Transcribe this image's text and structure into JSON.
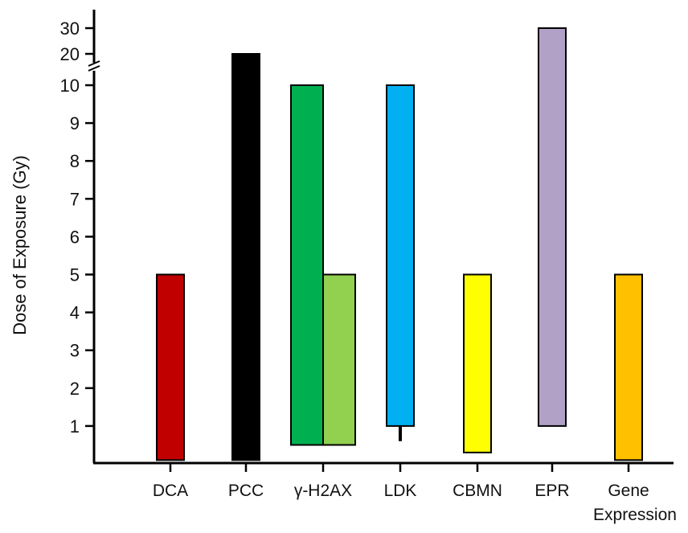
{
  "chart_data": {
    "type": "bar",
    "subtype": "floating-range",
    "ylabel": "Dose of Exposure (Gy)",
    "xlabel": "",
    "y_ticks_lower": [
      1,
      2,
      3,
      4,
      5,
      6,
      7,
      8,
      9,
      10
    ],
    "y_ticks_upper": [
      20,
      30
    ],
    "axis_break": true,
    "ylim": [
      0,
      30
    ],
    "categories": [
      {
        "label": "DCA",
        "label_lines": [
          "DCA"
        ]
      },
      {
        "label": "PCC",
        "label_lines": [
          "PCC"
        ]
      },
      {
        "label": "γ-H2AX",
        "label_lines": [
          "γ-H2AX"
        ]
      },
      {
        "label": "LDK",
        "label_lines": [
          "LDK"
        ]
      },
      {
        "label": "CBMN",
        "label_lines": [
          "CBMN"
        ]
      },
      {
        "label": "EPR",
        "label_lines": [
          "EPR"
        ]
      },
      {
        "label": "Gene Expression",
        "label_lines": [
          "Gene",
          "Expression"
        ]
      }
    ],
    "bars": [
      {
        "category": "DCA",
        "low": 0.1,
        "high": 5,
        "color": "#c00000"
      },
      {
        "category": "PCC",
        "low": 0.1,
        "high": 20,
        "color": "#000000"
      },
      {
        "category": "γ-H2AX",
        "low": 0.5,
        "high": 10,
        "color": "#00b050"
      },
      {
        "category": "γ-H2AX",
        "low": 0.5,
        "high": 5,
        "color": "#92d050"
      },
      {
        "category": "LDK",
        "low": 1,
        "high": 10,
        "color": "#00b0f0",
        "whisker_low": 0.6
      },
      {
        "category": "CBMN",
        "low": 0.3,
        "high": 5,
        "color": "#ffff00"
      },
      {
        "category": "EPR",
        "low": 1,
        "high": 30,
        "color": "#b2a1c7"
      },
      {
        "category": "Gene Expression",
        "low": 0.1,
        "high": 5,
        "color": "#ffc000"
      }
    ]
  }
}
